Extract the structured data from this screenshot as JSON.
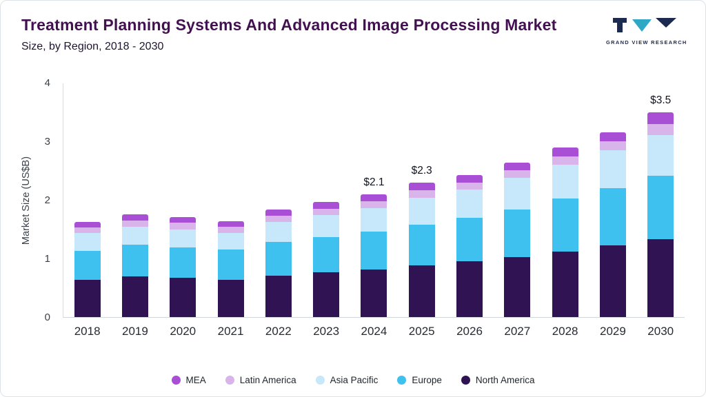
{
  "header": {
    "title": "Treatment Planning Systems And Advanced Image Processing Market",
    "subtitle": "Size, by Region, 2018 - 2030",
    "logo_text": "GRAND VIEW RESEARCH"
  },
  "chart_data": {
    "type": "bar",
    "stacked": true,
    "title": "Treatment Planning Systems And Advanced Image Processing Market Size, by Region, 2018 - 2030",
    "xlabel": "",
    "ylabel": "Market Size (US$B)",
    "ylim": [
      0,
      4
    ],
    "yticks": [
      0,
      1,
      2,
      3,
      4
    ],
    "grid": false,
    "legend_position": "bottom",
    "categories": [
      "2018",
      "2019",
      "2020",
      "2021",
      "2022",
      "2023",
      "2024",
      "2025",
      "2026",
      "2027",
      "2028",
      "2029",
      "2030"
    ],
    "series": [
      {
        "name": "North America",
        "color": "#301352",
        "values": [
          0.63,
          0.69,
          0.67,
          0.64,
          0.71,
          0.76,
          0.81,
          0.88,
          0.95,
          1.02,
          1.12,
          1.22,
          1.33
        ]
      },
      {
        "name": "Europe",
        "color": "#3fc1f0",
        "values": [
          0.5,
          0.54,
          0.52,
          0.51,
          0.57,
          0.6,
          0.65,
          0.7,
          0.75,
          0.82,
          0.9,
          0.98,
          1.08
        ]
      },
      {
        "name": "Asia Pacific",
        "color": "#c7e8fa",
        "values": [
          0.3,
          0.31,
          0.31,
          0.29,
          0.34,
          0.38,
          0.4,
          0.45,
          0.48,
          0.54,
          0.58,
          0.65,
          0.7
        ]
      },
      {
        "name": "Latin America",
        "color": "#d8b4ea",
        "values": [
          0.1,
          0.11,
          0.11,
          0.1,
          0.11,
          0.11,
          0.12,
          0.13,
          0.12,
          0.13,
          0.14,
          0.15,
          0.18
        ]
      },
      {
        "name": "MEA",
        "color": "#a94fd5",
        "values": [
          0.09,
          0.1,
          0.1,
          0.1,
          0.11,
          0.11,
          0.12,
          0.14,
          0.12,
          0.13,
          0.15,
          0.15,
          0.21
        ]
      }
    ],
    "legend_order": [
      "MEA",
      "Latin America",
      "Asia Pacific",
      "Europe",
      "North America"
    ],
    "annotations": {
      "2024": "$2.1",
      "2025": "$2.3",
      "2030": "$3.5"
    },
    "colors": {
      "title": "#431052",
      "subtitle": "#1d1430",
      "axis_line": "#d7dce2",
      "logo_navy": "#1b2a4e",
      "logo_teal": "#2fa8c6"
    }
  }
}
